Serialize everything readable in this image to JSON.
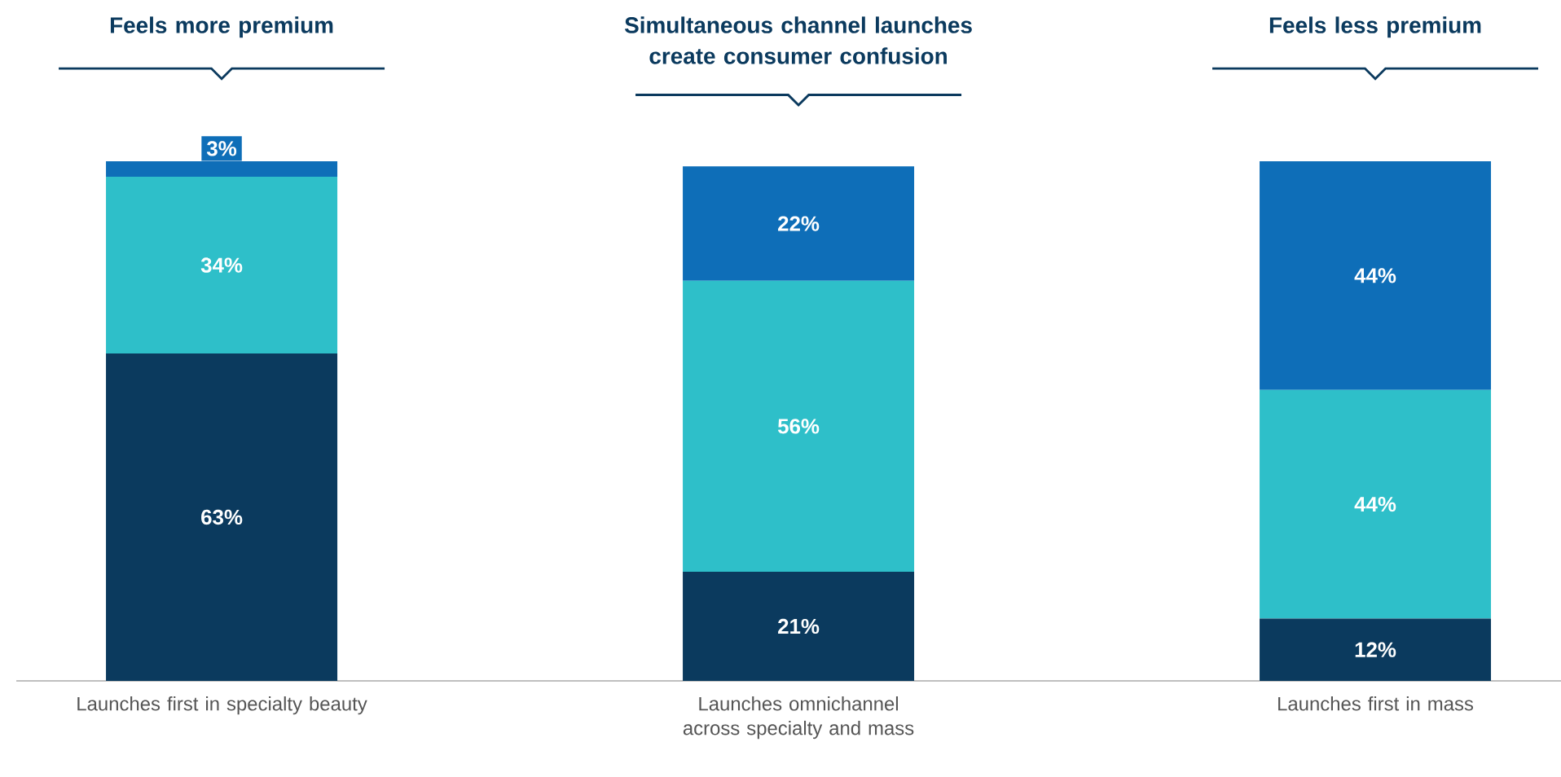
{
  "chart_data": {
    "type": "bar",
    "stacked": true,
    "tick_labels": "x",
    "categories": [
      "Launches first in specialty beauty",
      "Launches omnichannel across specialty and mass",
      "Launches first in mass"
    ],
    "annotations": [
      "Feels more premium",
      "Simultaneous channel launches create consumer confusion",
      "Feels less premium"
    ],
    "series": [
      {
        "color": "#0b3a5e",
        "values": [
          63,
          21,
          12
        ],
        "value_labels": [
          "63%",
          "21%",
          "12%"
        ]
      },
      {
        "color": "#2ebfc9",
        "values": [
          34,
          56,
          44
        ],
        "value_labels": [
          "34%",
          "56%",
          "44%"
        ]
      },
      {
        "color": "#0e6eb8",
        "values": [
          3,
          22,
          44
        ],
        "value_labels": [
          "3%",
          "22%",
          "44%"
        ]
      }
    ]
  }
}
